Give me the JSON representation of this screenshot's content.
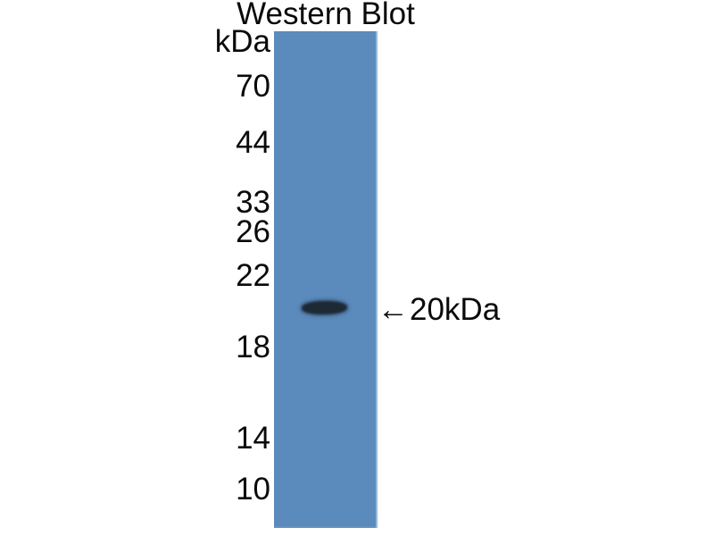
{
  "figure": {
    "title": "Western Blot",
    "unit_label": "kDa",
    "ladder": [
      {
        "label": "70"
      },
      {
        "label": "44"
      },
      {
        "label": "33"
      },
      {
        "label": "26"
      },
      {
        "label": "22"
      },
      {
        "label": "18"
      },
      {
        "label": "14"
      },
      {
        "label": "10"
      }
    ],
    "band_annotation": {
      "arrow": "←",
      "label": "20kDa"
    }
  },
  "colors": {
    "background": "#ffffff",
    "lane": "#5b8abd",
    "band": "#1d2935",
    "text": "#0a0a0a"
  },
  "chart_data": {
    "type": "western-blot",
    "title": "Western Blot",
    "ylabel": "kDa",
    "ladder_kda": [
      70,
      44,
      33,
      26,
      22,
      18,
      14,
      10
    ],
    "lanes": 1,
    "bands": [
      {
        "lane": 1,
        "kda": 20,
        "annotation": "←20kDa"
      }
    ],
    "legend_position": "none",
    "grid": false
  }
}
